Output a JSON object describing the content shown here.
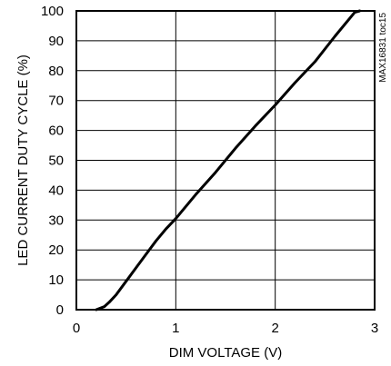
{
  "chart_data": {
    "type": "line",
    "title": "",
    "chart_id": "MAX16831 toc15",
    "xlabel": "DIM VOLTAGE (V)",
    "ylabel": "LED CURRENT DUTY CYCLE (%)",
    "xlim": [
      0,
      3
    ],
    "ylim": [
      0,
      100
    ],
    "xticks": [
      0,
      1,
      2,
      3
    ],
    "yticks": [
      0,
      10,
      20,
      30,
      40,
      50,
      60,
      70,
      80,
      90,
      100
    ],
    "grid": true,
    "series": [
      {
        "x": [
          0.2,
          0.28,
          0.33,
          0.4,
          0.5,
          0.6,
          0.7,
          0.8,
          0.9,
          1.0,
          1.2,
          1.4,
          1.6,
          1.8,
          2.0,
          2.2,
          2.4,
          2.6,
          2.8,
          2.85
        ],
        "y": [
          0,
          1,
          2.5,
          5,
          9.5,
          14,
          18.5,
          23,
          27,
          30.5,
          38.5,
          46,
          54,
          61.5,
          68.5,
          76,
          83,
          91.5,
          99.5,
          100
        ],
        "color": "#000000"
      }
    ]
  }
}
